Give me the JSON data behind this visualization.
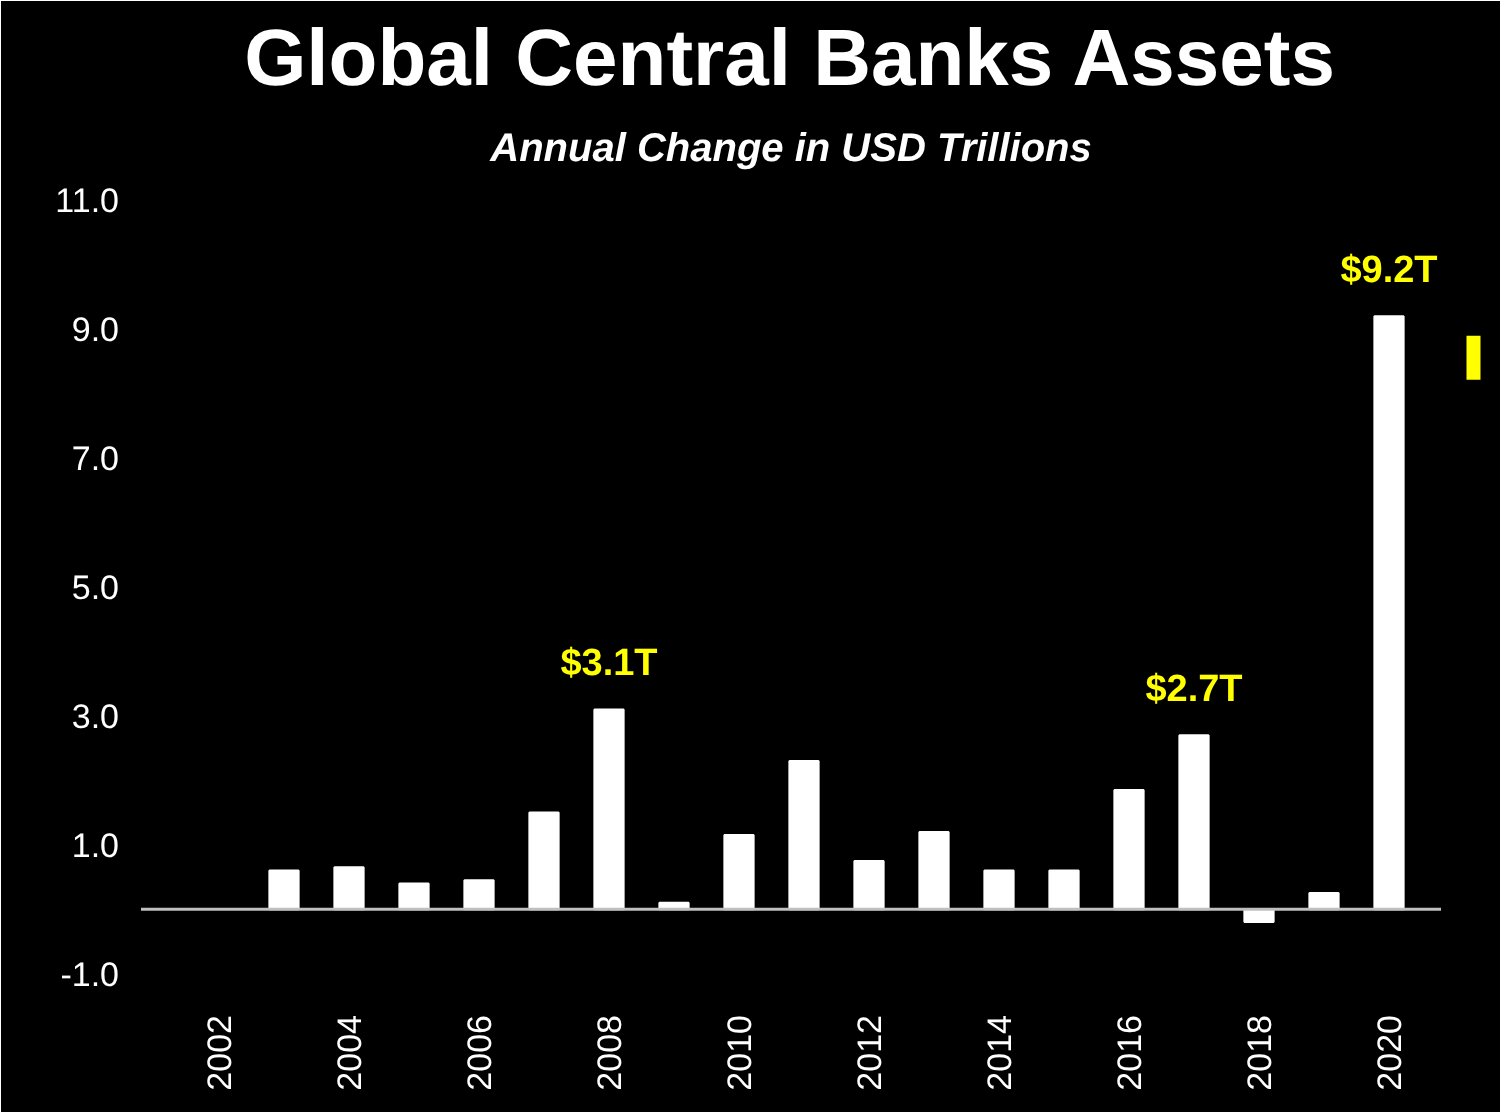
{
  "chart_data": {
    "type": "bar",
    "title": "Global Central Banks Assets",
    "subtitle": "Annual Change in USD Trillions",
    "categories": [
      "2002",
      null,
      "2004",
      null,
      "2006",
      null,
      "2008",
      null,
      "2010",
      null,
      "2012",
      null,
      "2014",
      null,
      "2016",
      null,
      "2018",
      null,
      "2020"
    ],
    "values": [
      null,
      0.6,
      0.65,
      0.4,
      0.45,
      1.5,
      3.1,
      0.1,
      1.15,
      2.3,
      0.75,
      1.2,
      0.6,
      0.6,
      1.85,
      2.7,
      -0.2,
      0.25,
      9.2
    ],
    "value_labels": [
      null,
      null,
      null,
      null,
      null,
      null,
      "$3.1T",
      null,
      null,
      null,
      null,
      null,
      null,
      null,
      null,
      "$2.7T",
      null,
      null,
      "$9.2T"
    ],
    "color": "#ffffff",
    "ylim": [
      -1.3,
      11.3
    ],
    "yticks": [
      {
        "value": -1,
        "label": "-1.0"
      },
      {
        "value": 1,
        "label": "1.0"
      },
      {
        "value": 3,
        "label": "3.0"
      },
      {
        "value": 5,
        "label": "5.0"
      },
      {
        "value": 7,
        "label": "7.0"
      },
      {
        "value": 9,
        "label": "9.0"
      },
      {
        "value": 11,
        "label": "11.0"
      }
    ],
    "grid": false
  }
}
